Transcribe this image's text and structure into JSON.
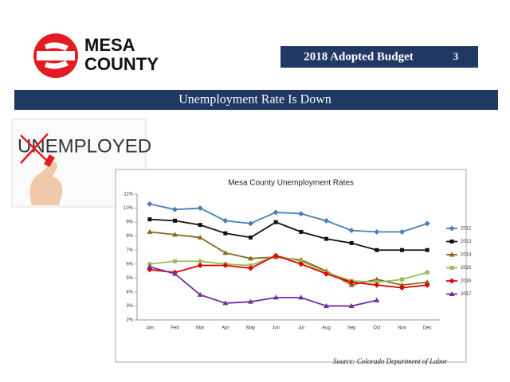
{
  "header": {
    "logo_line1": "MESA",
    "logo_line2": "COUNTY",
    "budget_title": "2018 Adopted Budget",
    "page_number": "3",
    "slide_title": "Unemployment Rate Is Down"
  },
  "image_text": "UNEMPLOYED",
  "source": "Source:   Colorado Department of Labor",
  "chart_data": {
    "type": "line",
    "title": "Mesa County Unemployment Rates",
    "categories": [
      "Jan",
      "Feb",
      "Mar",
      "Apr",
      "May",
      "Jun",
      "Jul",
      "Aug",
      "Sep",
      "Oct",
      "Nov",
      "Dec"
    ],
    "series": [
      {
        "name": "2012",
        "color": "#4a7ebb",
        "marker": "diamond",
        "values": [
          10.3,
          9.9,
          10.0,
          9.1,
          8.9,
          9.7,
          9.6,
          9.1,
          8.4,
          8.3,
          8.3,
          8.9
        ]
      },
      {
        "name": "2013",
        "color": "#111111",
        "marker": "square",
        "values": [
          9.2,
          9.1,
          8.8,
          8.2,
          7.9,
          9.0,
          8.3,
          7.8,
          7.5,
          7.0,
          7.0,
          7.0
        ]
      },
      {
        "name": "2014",
        "color": "#8a6a1a",
        "marker": "triangle",
        "values": [
          8.3,
          8.1,
          7.9,
          6.8,
          6.4,
          6.5,
          6.3,
          5.5,
          4.5,
          4.9,
          4.5,
          4.7
        ]
      },
      {
        "name": "2015",
        "color": "#9bbb59",
        "marker": "square",
        "values": [
          6.0,
          6.2,
          6.2,
          6.0,
          5.9,
          6.6,
          6.2,
          5.4,
          4.8,
          4.7,
          4.9,
          5.4
        ]
      },
      {
        "name": "2016",
        "color": "#e00000",
        "marker": "diamond",
        "values": [
          5.6,
          5.4,
          5.9,
          5.9,
          5.7,
          6.6,
          6.0,
          5.3,
          4.7,
          4.5,
          4.3,
          4.5
        ]
      },
      {
        "name": "2017",
        "color": "#7030a0",
        "marker": "triangle",
        "values": [
          5.8,
          5.3,
          3.8,
          3.2,
          3.3,
          3.6,
          3.6,
          3.0,
          3.0,
          3.4,
          null,
          null
        ]
      }
    ],
    "ylim": [
      2,
      11
    ],
    "yticks": [
      {
        "value": 2,
        "label": "2%"
      },
      {
        "value": 3,
        "label": "3%"
      },
      {
        "value": 4,
        "label": "4%"
      },
      {
        "value": 5,
        "label": "5%"
      },
      {
        "value": 6,
        "label": "6%"
      },
      {
        "value": 7,
        "label": "7%"
      },
      {
        "value": 8,
        "label": "8%"
      },
      {
        "value": 9,
        "label": "9%"
      },
      {
        "value": 10,
        "label": "10%"
      },
      {
        "value": 11,
        "label": "11%"
      }
    ],
    "grid": false,
    "legend": "right"
  }
}
